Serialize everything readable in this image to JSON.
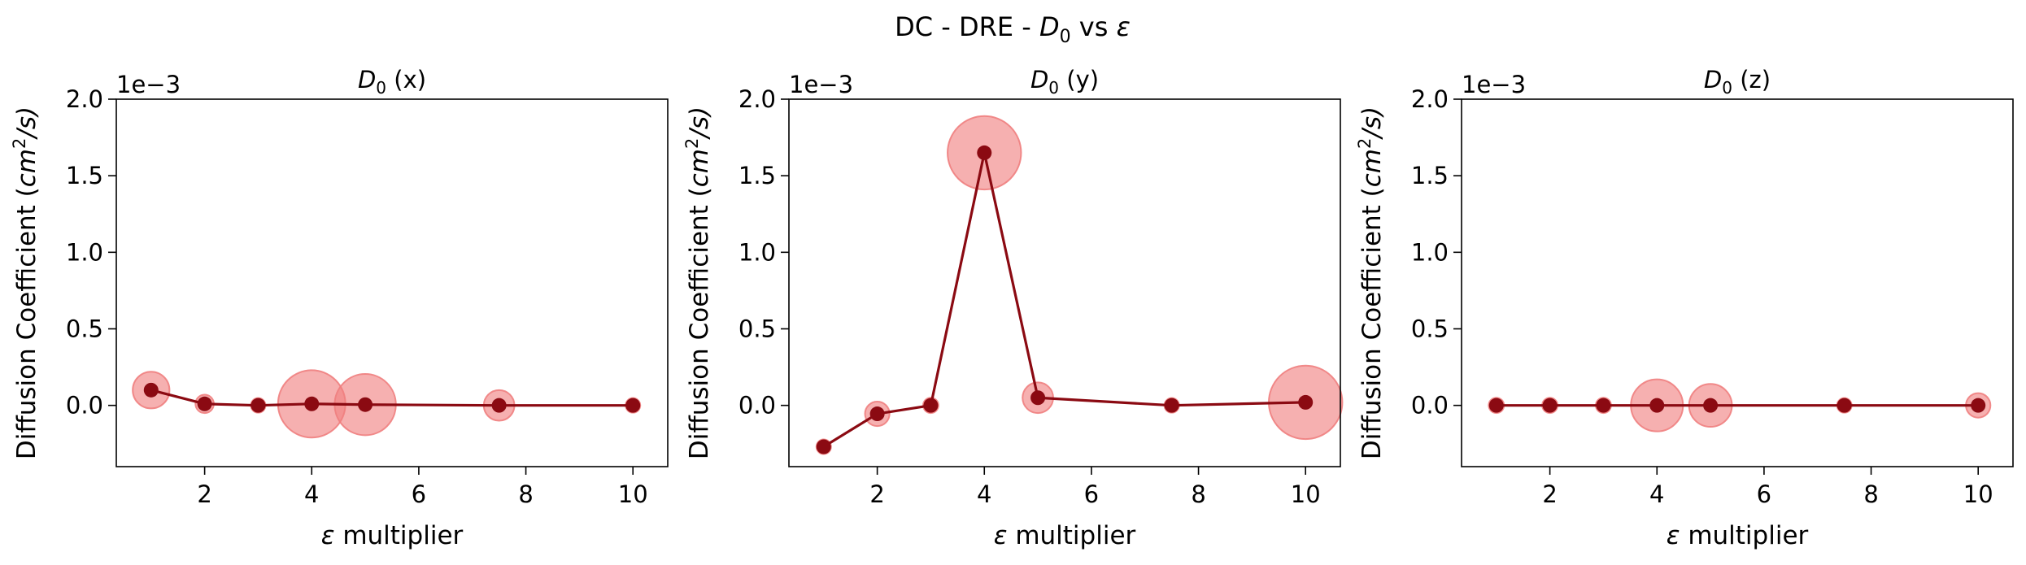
{
  "suptitle": {
    "prefix": "DC - DRE - ",
    "d_symbol": "D",
    "d_subscript": "0",
    "vs": " vs ",
    "epsilon": "ε"
  },
  "colors": {
    "line": "#8b0a12",
    "marker": "#8b0a12",
    "halo": "#f08080",
    "axis": "#000000"
  },
  "chart_data": [
    {
      "type": "scatter",
      "title": {
        "symbol": "D",
        "subscript": "0",
        "suffix": " (x)"
      },
      "xlabel": {
        "symbol": "ε",
        "text": " multiplier"
      },
      "ylabel": {
        "prefix": "Diffusion Coefficient (",
        "unit": "cm",
        "exp": "2",
        "suffix": "/s)"
      },
      "offset_label": "1e−3",
      "xlim": [
        0.35,
        10.65
      ],
      "ylim": [
        -0.4,
        2.0
      ],
      "xticks": [
        2,
        4,
        6,
        8,
        10
      ],
      "xtick_labels": [
        "2",
        "4",
        "6",
        "8",
        "10"
      ],
      "yticks": [
        0.0,
        0.5,
        1.0,
        1.5,
        2.0
      ],
      "ytick_labels": [
        "0.0",
        "0.5",
        "1.0",
        "1.5",
        "2.0"
      ],
      "grid": false,
      "x": [
        1,
        2,
        3,
        4,
        5,
        7.5,
        10
      ],
      "y": [
        0.1,
        0.01,
        0.0,
        0.01,
        0.005,
        0.0,
        0.0
      ],
      "uncertainty": [
        0.12,
        0.06,
        0.03,
        0.22,
        0.2,
        0.1,
        0.03
      ]
    },
    {
      "type": "scatter",
      "title": {
        "symbol": "D",
        "subscript": "0",
        "suffix": " (y)"
      },
      "xlabel": {
        "symbol": "ε",
        "text": " multiplier"
      },
      "ylabel": {
        "prefix": "Diffusion Coefficient (",
        "unit": "cm",
        "exp": "2",
        "suffix": "/s)"
      },
      "offset_label": "1e−3",
      "xlim": [
        0.35,
        10.65
      ],
      "ylim": [
        -0.4,
        2.0
      ],
      "xticks": [
        2,
        4,
        6,
        8,
        10
      ],
      "xtick_labels": [
        "2",
        "4",
        "6",
        "8",
        "10"
      ],
      "yticks": [
        0.0,
        0.5,
        1.0,
        1.5,
        2.0
      ],
      "ytick_labels": [
        "0.0",
        "0.5",
        "1.0",
        "1.5",
        "2.0"
      ],
      "grid": false,
      "x": [
        1,
        2,
        3,
        4,
        5,
        7.5,
        10
      ],
      "y": [
        -0.27,
        -0.055,
        0.0,
        1.65,
        0.05,
        0.0,
        0.02
      ],
      "uncertainty": [
        0.04,
        0.08,
        0.05,
        0.24,
        0.1,
        0.04,
        0.24
      ]
    },
    {
      "type": "scatter",
      "title": {
        "symbol": "D",
        "subscript": "0",
        "suffix": " (z)"
      },
      "xlabel": {
        "symbol": "ε",
        "text": " multiplier"
      },
      "ylabel": {
        "prefix": "Diffusion Coefficient (",
        "unit": "cm",
        "exp": "2",
        "suffix": "/s)"
      },
      "offset_label": "1e−3",
      "xlim": [
        0.35,
        10.65
      ],
      "ylim": [
        -0.4,
        2.0
      ],
      "xticks": [
        2,
        4,
        6,
        8,
        10
      ],
      "xtick_labels": [
        "2",
        "4",
        "6",
        "8",
        "10"
      ],
      "yticks": [
        0.0,
        0.5,
        1.0,
        1.5,
        2.0
      ],
      "ytick_labels": [
        "0.0",
        "0.5",
        "1.0",
        "1.5",
        "2.0"
      ],
      "grid": false,
      "x": [
        1,
        2,
        3,
        4,
        5,
        7.5,
        10
      ],
      "y": [
        0.0,
        0.0,
        0.0,
        0.0,
        0.0,
        0.0,
        0.0
      ],
      "uncertainty": [
        0.05,
        0.05,
        0.05,
        0.17,
        0.14,
        0.04,
        0.08
      ]
    }
  ]
}
